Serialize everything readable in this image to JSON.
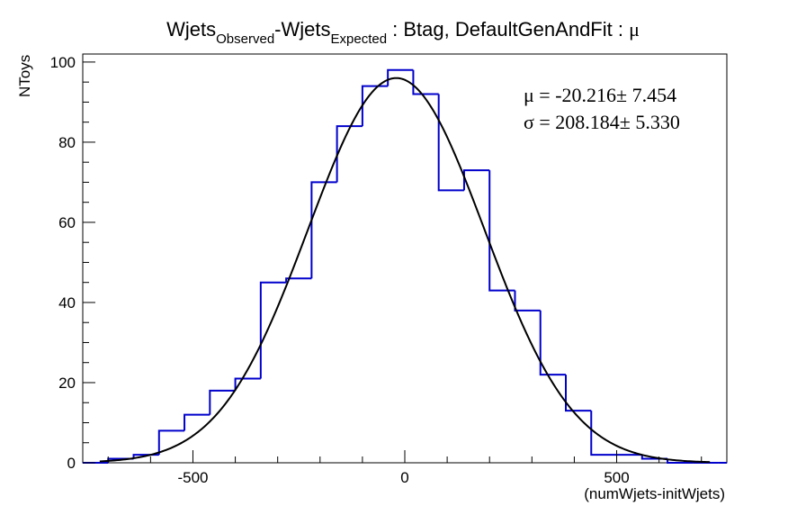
{
  "chart_data": {
    "type": "histogram",
    "title": {
      "part1": "Wjets",
      "sub1": "Observed",
      "part2": "-Wjets",
      "sub2": "Expected",
      "part3": " : Btag, DefaultGenAndFit : ",
      "mu_symbol": "μ"
    },
    "xlabel": "(numWjets-initWjets)",
    "ylabel": "NToys",
    "xlim": [
      -760,
      760
    ],
    "ylim": [
      0,
      102
    ],
    "x_ticks": [
      -500,
      0,
      500
    ],
    "x_tick_labels": [
      "-500",
      "0",
      "500"
    ],
    "y_ticks": [
      0,
      20,
      40,
      60,
      80,
      100
    ],
    "y_tick_labels": [
      "0",
      "20",
      "40",
      "60",
      "80",
      "100"
    ],
    "bin_edges": [
      -760,
      -700,
      -640,
      -580,
      -520,
      -460,
      -400,
      -340,
      -280,
      -220,
      -160,
      -100,
      -40,
      20,
      80,
      140,
      200,
      260,
      320,
      380,
      440,
      500,
      560,
      620,
      680,
      740,
      760
    ],
    "counts": [
      0,
      1,
      2,
      8,
      12,
      18,
      21,
      45,
      46,
      70,
      84,
      94,
      98,
      92,
      68,
      73,
      43,
      38,
      22,
      13,
      2,
      2,
      1,
      0,
      0,
      0
    ],
    "fit": {
      "type": "gaussian",
      "mean": -20.216,
      "sigma": 208.184,
      "amplitude": 96
    },
    "stats": {
      "line1": "μ = -20.216± 7.454",
      "line2": "σ = 208.184± 5.330"
    },
    "colors": {
      "histogram": "#0000cc",
      "fit": "#000000",
      "frame": "#000000"
    },
    "grid": false,
    "legend": "none"
  }
}
